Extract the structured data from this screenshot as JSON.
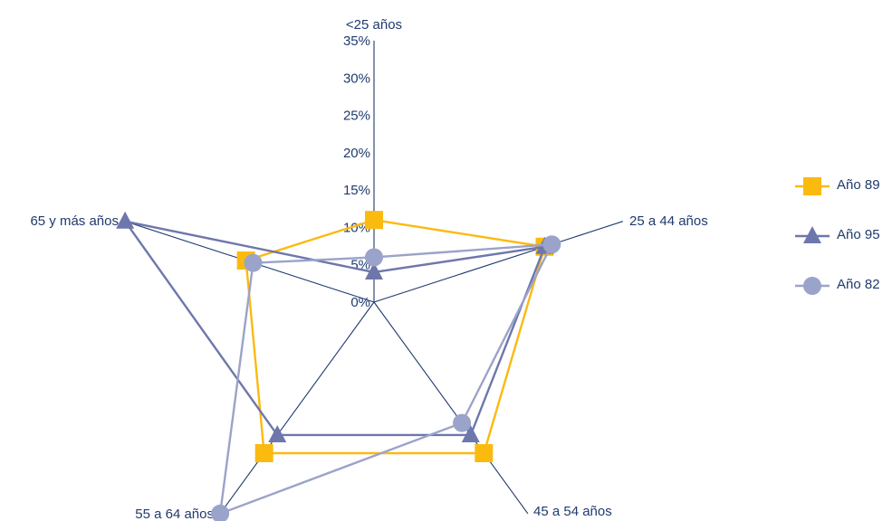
{
  "chart_data": {
    "type": "radar",
    "title": "",
    "axes": [
      "<25 años",
      "25 a 44 años",
      "45 a 54 años",
      "55 a 64 años",
      "65 y más años"
    ],
    "rlim": [
      0,
      35
    ],
    "ticks": [
      "0%",
      "5%",
      "10%",
      "15%",
      "20%",
      "25%",
      "30%",
      "35%"
    ],
    "legend_position": "right",
    "series": [
      {
        "name": "Año 89",
        "marker": "square",
        "color": "#FBBA10",
        "values": [
          11,
          24,
          25,
          25,
          18
        ]
      },
      {
        "name": "Año 95",
        "marker": "triangle",
        "color": "#6E77AB",
        "values": [
          4,
          24,
          22,
          22,
          35
        ]
      },
      {
        "name": "Año 82",
        "marker": "circle",
        "color": "#9AA3C9",
        "values": [
          6,
          25,
          20,
          35,
          17
        ]
      }
    ]
  }
}
